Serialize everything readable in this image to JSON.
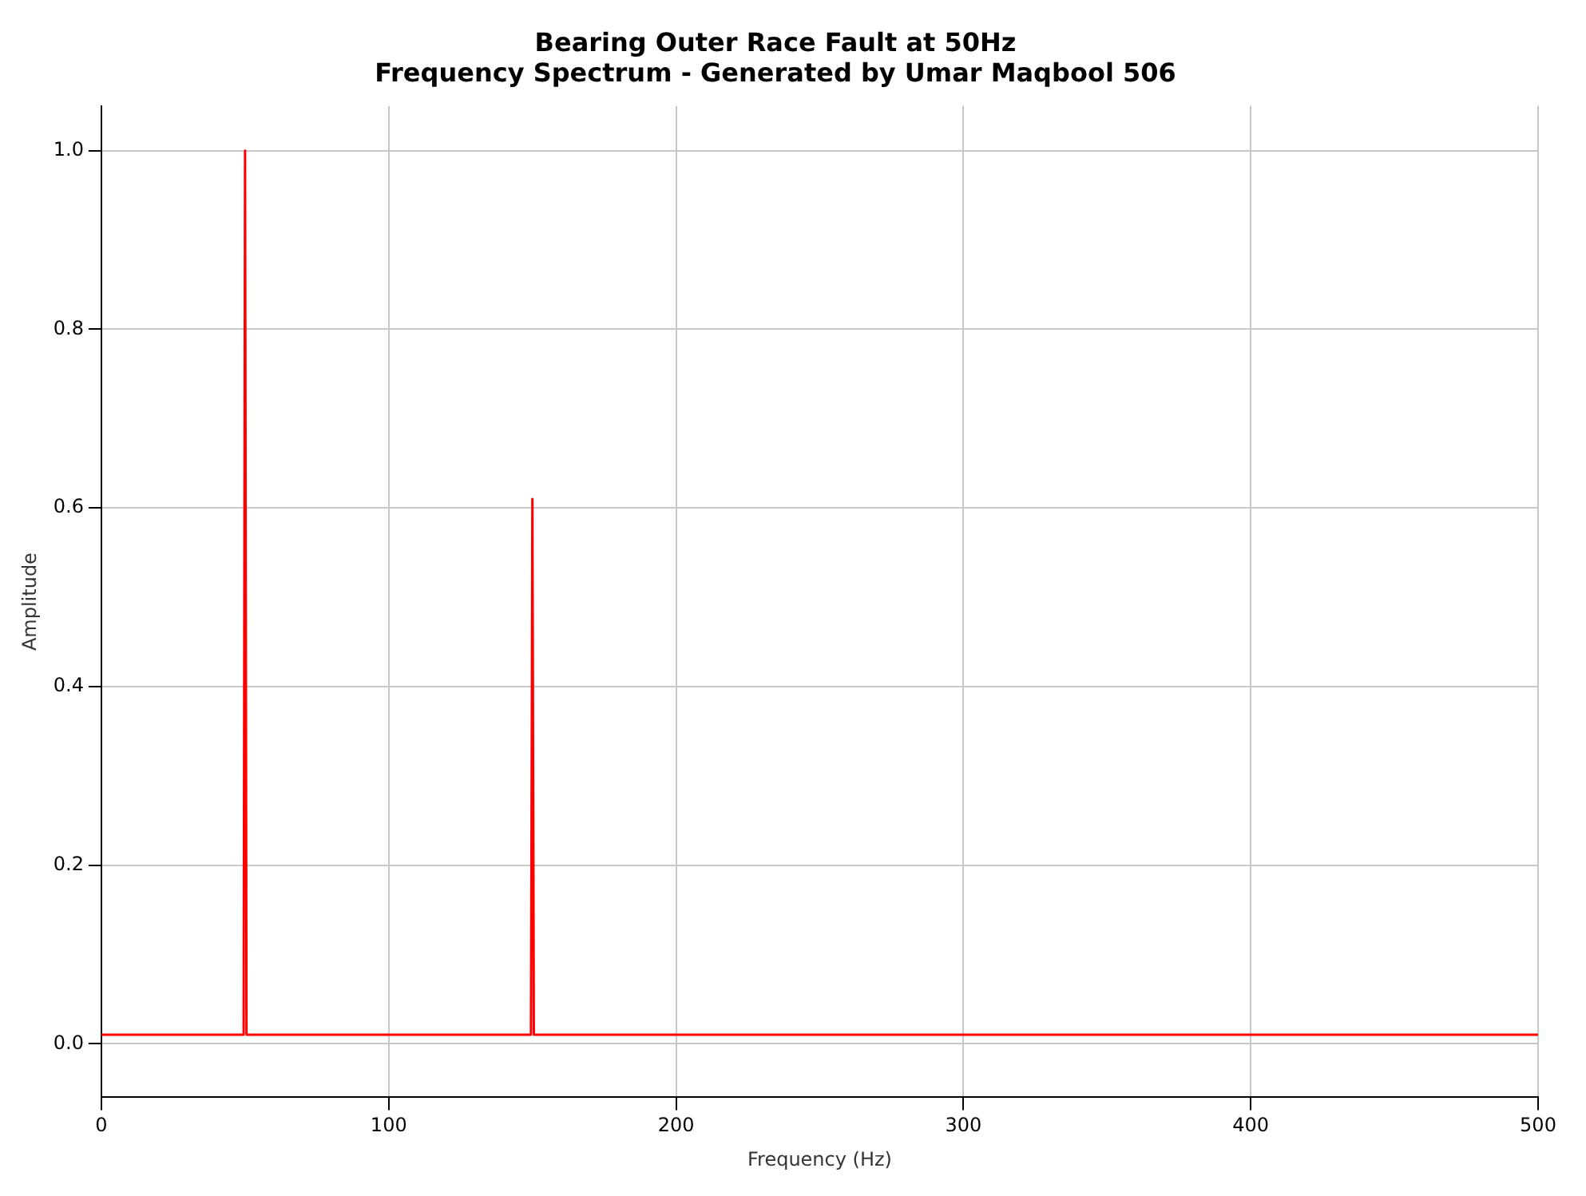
{
  "chart_data": {
    "type": "line",
    "title": "Bearing Outer Race Fault at 50Hz\nFrequency Spectrum - Generated by Umar Maqbool 506",
    "xlabel": "Frequency (Hz)",
    "ylabel": "Amplitude",
    "x": [
      0,
      10,
      20,
      30,
      40,
      49.5,
      50,
      50.5,
      60,
      70,
      80,
      90,
      100,
      110,
      120,
      130,
      140,
      149.5,
      150,
      150.5,
      160,
      170,
      180,
      190,
      200,
      210,
      220,
      230,
      240,
      250,
      260,
      270,
      280,
      290,
      300,
      310,
      320,
      330,
      340,
      350,
      360,
      370,
      380,
      390,
      400,
      410,
      420,
      430,
      440,
      450,
      460,
      470,
      480,
      490,
      500
    ],
    "series": [
      {
        "color": "#ff0000",
        "values": [
          0.01,
          0.01,
          0.01,
          0.01,
          0.01,
          0.01,
          1.0,
          0.01,
          0.01,
          0.01,
          0.01,
          0.01,
          0.01,
          0.01,
          0.01,
          0.01,
          0.01,
          0.01,
          0.61,
          0.01,
          0.01,
          0.01,
          0.01,
          0.01,
          0.01,
          0.01,
          0.01,
          0.01,
          0.01,
          0.01,
          0.01,
          0.01,
          0.01,
          0.01,
          0.01,
          0.01,
          0.01,
          0.01,
          0.01,
          0.01,
          0.01,
          0.01,
          0.01,
          0.01,
          0.01,
          0.01,
          0.01,
          0.01,
          0.01,
          0.01,
          0.01,
          0.01,
          0.01,
          0.01,
          0.01
        ]
      }
    ],
    "xlim": [
      0,
      500
    ],
    "xticks": [
      0,
      100,
      200,
      300,
      400,
      500
    ],
    "ylim": [
      -0.06,
      1.05
    ],
    "yticks": [
      {
        "value": 0,
        "label": "0.0"
      },
      0.2,
      0.4,
      0.6,
      0.8,
      {
        "value": 1,
        "label": "1.0"
      }
    ],
    "grid": true,
    "marker": "none",
    "line_style": "solid"
  }
}
